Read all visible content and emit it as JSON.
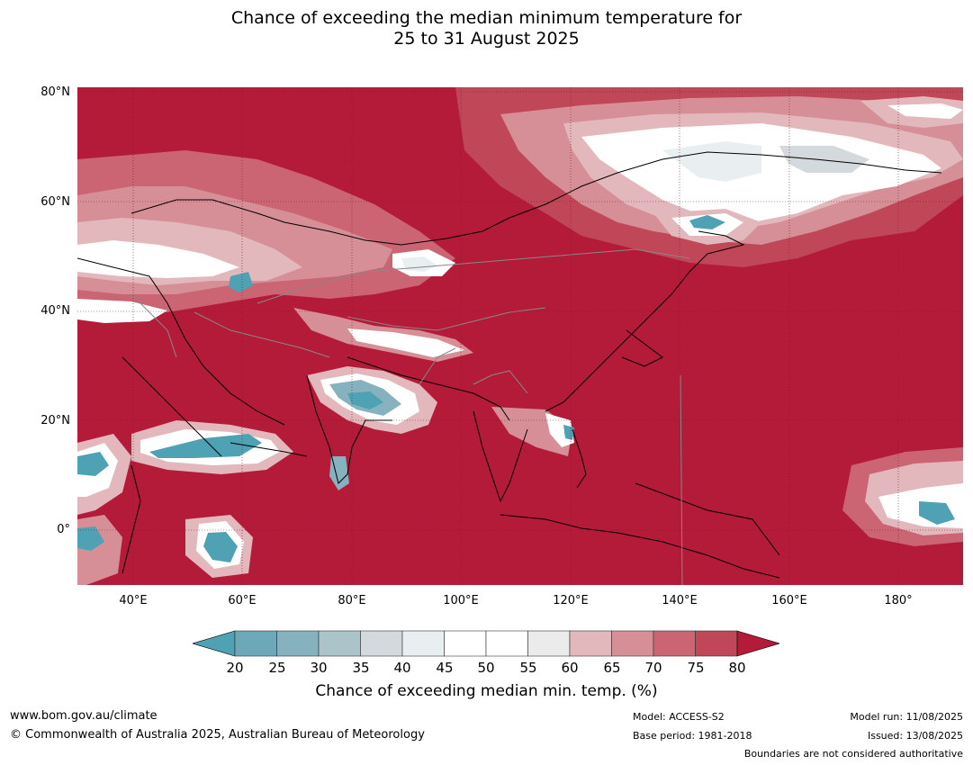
{
  "title": {
    "line1": "Chance of exceeding the median minimum temperature for",
    "line2": "25 to 31 August 2025"
  },
  "map": {
    "lat_labels": [
      "80°N",
      "60°N",
      "40°N",
      "20°N",
      "0°"
    ],
    "lon_labels": [
      "40°E",
      "60°E",
      "80°E",
      "100°E",
      "120°E",
      "140°E",
      "160°E",
      "180°"
    ],
    "colors": {
      "dominant": "#b31b39",
      "above_75": "#c04757",
      "above_70": "#cb6473",
      "above_65": "#d68f96",
      "above_60": "#e2b8bd",
      "near_55": "#ecebec",
      "near_50": "#ffffff",
      "below_45": "#e9eff1",
      "below_40": "#d3d9dc",
      "below_35": "#abc4ca",
      "below_30": "#85b2be",
      "below_25": "#6ca8b7",
      "below_20": "#4ea2b3",
      "coastline": "#000000",
      "boundaries": "#888888"
    }
  },
  "colorbar": {
    "ticks": [
      "20",
      "25",
      "30",
      "35",
      "40",
      "45",
      "50",
      "55",
      "60",
      "65",
      "70",
      "75",
      "80"
    ],
    "colors": [
      "#6ca8b7",
      "#85b2be",
      "#abc4ca",
      "#d3d9dc",
      "#e9eff1",
      "#ffffff",
      "#ffffff",
      "#ecebec",
      "#e2b8bd",
      "#d68f96",
      "#cb6473",
      "#c04757"
    ],
    "low_color": "#4ea2b3",
    "high_color": "#b31b39",
    "label": "Chance of exceeding median min. temp. (%)"
  },
  "footer": {
    "url": "www.bom.gov.au/climate",
    "copyright": "© Commonwealth of Australia 2025, Australian Bureau of Meteorology",
    "model": "Model: ACCESS-S2",
    "base_period": "Base period: 1981-2018",
    "model_run": "Model run: 11/08/2025",
    "issued": "Issued: 13/08/2025",
    "disclaimer": "Boundaries are not considered authoritative"
  }
}
